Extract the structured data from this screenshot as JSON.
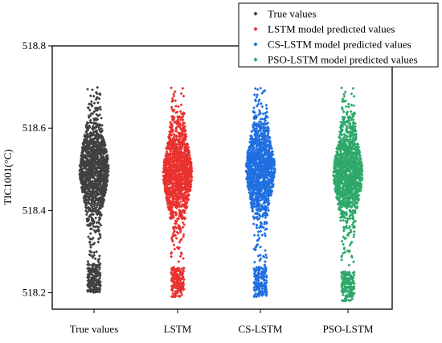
{
  "chart_data": {
    "type": "scatter",
    "title": "",
    "xlabel": "",
    "ylabel": "TIC1001(°C)",
    "ylim": [
      518.16,
      518.8
    ],
    "yticks": [
      518.2,
      518.4,
      518.6,
      518.8
    ],
    "ytick_labels": [
      "518.2",
      "518.4",
      "518.6",
      "518.8"
    ],
    "categories": [
      "True values",
      "LSTM",
      "CS-LSTM",
      "PSO-LSTM"
    ],
    "grid": false,
    "legend_position": "top-right",
    "point_marker": "diamond",
    "series": [
      {
        "name": "True values",
        "category": "True values",
        "color": "#404040",
        "y_min": 518.2,
        "y_max": 518.7,
        "center": 518.5,
        "points_approx": 1500
      },
      {
        "name": "LSTM model predicted values",
        "category": "LSTM",
        "color": "#e8322f",
        "y_min": 518.19,
        "y_max": 518.7,
        "center": 518.49,
        "points_approx": 1500
      },
      {
        "name": "CS-LSTM model predicted values",
        "category": "CS-LSTM",
        "color": "#1f6fe0",
        "y_min": 518.19,
        "y_max": 518.7,
        "center": 518.5,
        "points_approx": 1500
      },
      {
        "name": "PSO-LSTM model predicted values",
        "category": "PSO-LSTM",
        "color": "#2ea86a",
        "y_min": 518.18,
        "y_max": 518.7,
        "center": 518.49,
        "points_approx": 1500
      }
    ]
  }
}
